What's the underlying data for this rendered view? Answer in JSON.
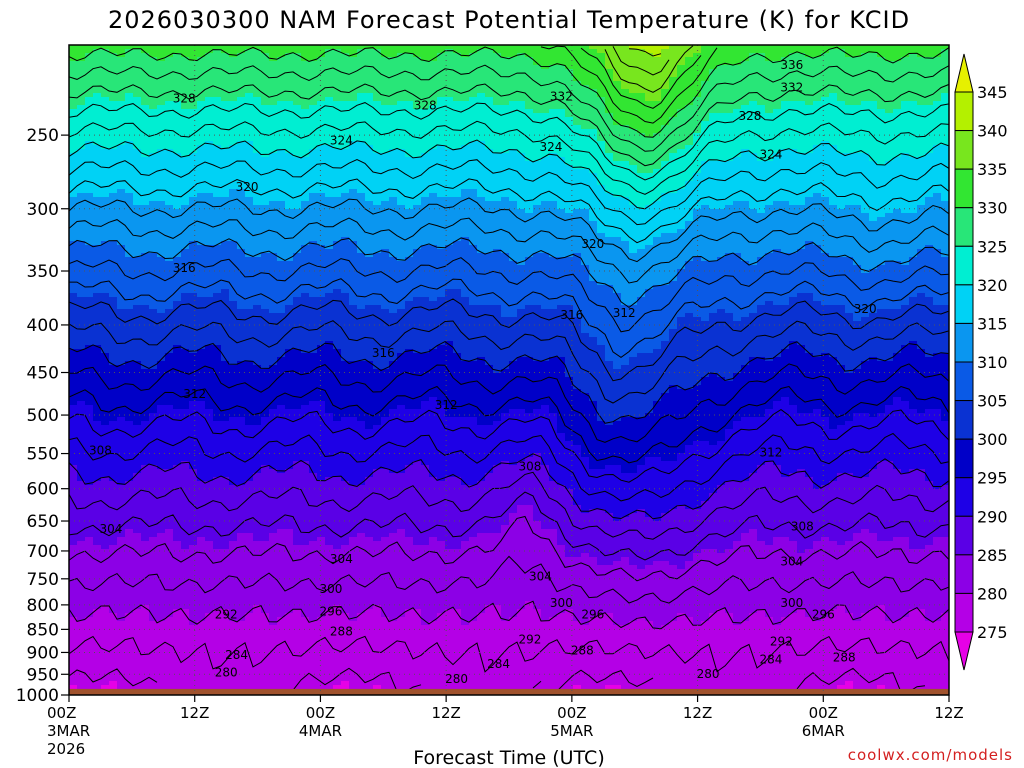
{
  "chart_data": {
    "type": "contour",
    "title": "2026030300 NAM Forecast Potential Temperature (K) for KCID",
    "xlabel": "Forecast Time (UTC)",
    "ylabel": "",
    "x_range_hours": [
      0,
      84
    ],
    "x_ticks": [
      {
        "hour": 0,
        "label": "00Z",
        "sub": "3MAR",
        "sub2": "2026"
      },
      {
        "hour": 12,
        "label": "12Z",
        "sub": "",
        "sub2": ""
      },
      {
        "hour": 24,
        "label": "00Z",
        "sub": "4MAR",
        "sub2": ""
      },
      {
        "hour": 36,
        "label": "12Z",
        "sub": "",
        "sub2": ""
      },
      {
        "hour": 48,
        "label": "00Z",
        "sub": "5MAR",
        "sub2": ""
      },
      {
        "hour": 60,
        "label": "12Z",
        "sub": "",
        "sub2": ""
      },
      {
        "hour": 72,
        "label": "00Z",
        "sub": "6MAR",
        "sub2": ""
      },
      {
        "hour": 84,
        "label": "12Z",
        "sub": "",
        "sub2": ""
      }
    ],
    "y_axis": "pressure (hPa)",
    "y_range": [
      1000,
      200
    ],
    "y_ticks": [
      250,
      300,
      350,
      400,
      450,
      500,
      550,
      600,
      650,
      700,
      750,
      800,
      850,
      900,
      950,
      1000
    ],
    "colorbar": {
      "levels": [
        275,
        280,
        285,
        290,
        295,
        300,
        305,
        310,
        315,
        320,
        325,
        330,
        335,
        340,
        345
      ],
      "colors": [
        "#e600e6",
        "#b400e6",
        "#8c00e6",
        "#5a00e6",
        "#1e00e6",
        "#0000c8",
        "#0a32d2",
        "#0a5ae6",
        "#0a96f0",
        "#00d2f5",
        "#00eed2",
        "#28e678",
        "#32e632",
        "#78e61e",
        "#b4f000",
        "#e6f000"
      ]
    },
    "contour_labels": [
      {
        "value": 328,
        "hour": 11,
        "p": 228
      },
      {
        "value": 328,
        "hour": 34,
        "p": 232
      },
      {
        "value": 332,
        "hour": 47,
        "p": 227
      },
      {
        "value": 336,
        "hour": 69,
        "p": 210
      },
      {
        "value": 332,
        "hour": 69,
        "p": 222
      },
      {
        "value": 328,
        "hour": 65,
        "p": 238
      },
      {
        "value": 324,
        "hour": 26,
        "p": 253
      },
      {
        "value": 324,
        "hour": 46,
        "p": 257
      },
      {
        "value": 324,
        "hour": 67,
        "p": 262
      },
      {
        "value": 320,
        "hour": 17,
        "p": 284
      },
      {
        "value": 320,
        "hour": 50,
        "p": 327
      },
      {
        "value": 320,
        "hour": 76,
        "p": 384
      },
      {
        "value": 316,
        "hour": 11,
        "p": 347
      },
      {
        "value": 316,
        "hour": 48,
        "p": 390
      },
      {
        "value": 316,
        "hour": 30,
        "p": 428
      },
      {
        "value": 312,
        "hour": 53,
        "p": 388
      },
      {
        "value": 312,
        "hour": 12,
        "p": 474
      },
      {
        "value": 312,
        "hour": 36,
        "p": 487
      },
      {
        "value": 312,
        "hour": 67,
        "p": 548
      },
      {
        "value": 308,
        "hour": 3,
        "p": 545
      },
      {
        "value": 308,
        "hour": 44,
        "p": 567
      },
      {
        "value": 308,
        "hour": 70,
        "p": 658
      },
      {
        "value": 304,
        "hour": 4,
        "p": 662
      },
      {
        "value": 304,
        "hour": 26,
        "p": 713
      },
      {
        "value": 304,
        "hour": 45,
        "p": 745
      },
      {
        "value": 304,
        "hour": 69,
        "p": 718
      },
      {
        "value": 300,
        "hour": 25,
        "p": 768
      },
      {
        "value": 300,
        "hour": 47,
        "p": 795
      },
      {
        "value": 300,
        "hour": 69,
        "p": 795
      },
      {
        "value": 296,
        "hour": 25,
        "p": 812
      },
      {
        "value": 296,
        "hour": 50,
        "p": 818
      },
      {
        "value": 296,
        "hour": 72,
        "p": 818
      },
      {
        "value": 292,
        "hour": 15,
        "p": 818
      },
      {
        "value": 292,
        "hour": 44,
        "p": 870
      },
      {
        "value": 292,
        "hour": 68,
        "p": 875
      },
      {
        "value": 288,
        "hour": 26,
        "p": 853
      },
      {
        "value": 288,
        "hour": 49,
        "p": 895
      },
      {
        "value": 288,
        "hour": 74,
        "p": 910
      },
      {
        "value": 284,
        "hour": 16,
        "p": 905
      },
      {
        "value": 284,
        "hour": 41,
        "p": 925
      },
      {
        "value": 284,
        "hour": 67,
        "p": 915
      },
      {
        "value": 280,
        "hour": 15,
        "p": 945
      },
      {
        "value": 280,
        "hour": 37,
        "p": 960
      },
      {
        "value": 280,
        "hour": 61,
        "p": 948
      }
    ],
    "underground_color": "#a0522d"
  },
  "credit": "coolwx.com/models"
}
